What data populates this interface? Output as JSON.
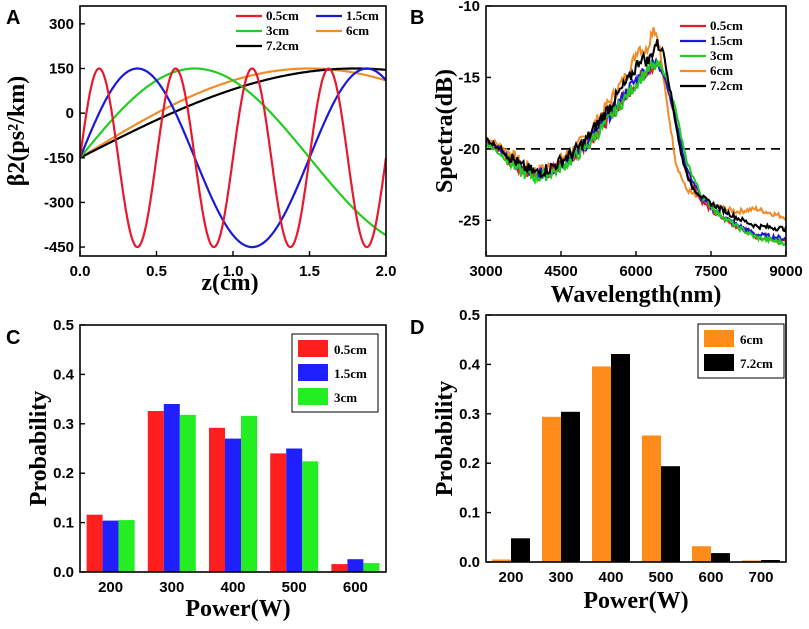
{
  "chart_data": [
    {
      "id": "A",
      "panel_label": "A",
      "type": "line",
      "xlabel": "z(cm)",
      "ylabel": "β2(ps²/km)",
      "xlim": [
        0,
        2.0
      ],
      "ylim": [
        -480,
        360
      ],
      "xticks": [
        "0.0",
        "0.5",
        "1.0",
        "1.5",
        "2.0"
      ],
      "xtick_values": [
        0,
        0.5,
        1.0,
        1.5,
        2.0
      ],
      "yticks": [
        "300",
        "150",
        "0",
        "-150",
        "-300",
        "-450"
      ],
      "ytick_values": [
        300,
        150,
        0,
        -150,
        -300,
        -450
      ],
      "legend_position": "top-right",
      "series": [
        {
          "name": "0.5cm",
          "color": "#e8192c",
          "model": "cosine",
          "period_cm": 0.5,
          "min": -450,
          "max": 150,
          "start": -150
        },
        {
          "name": "1.5cm",
          "color": "#1a1ad6",
          "model": "cosine",
          "period_cm": 1.5,
          "min": -450,
          "max": 150,
          "start": -150
        },
        {
          "name": "3cm",
          "color": "#22cc22",
          "model": "cosine",
          "period_cm": 3,
          "min": -450,
          "max": 150,
          "start": -150
        },
        {
          "name": "6cm",
          "color": "#f08c2a",
          "model": "cosine",
          "period_cm": 6,
          "min": -450,
          "max": 150,
          "start": -150
        },
        {
          "name": "7.2cm",
          "color": "#000000",
          "model": "cosine",
          "period_cm": 7.2,
          "min": -450,
          "max": 150,
          "start": -150
        }
      ]
    },
    {
      "id": "B",
      "panel_label": "B",
      "type": "line",
      "xlabel": "Wavelength(nm)",
      "ylabel": "Spectra(dB)",
      "xlim": [
        3000,
        9000
      ],
      "ylim": [
        -27.5,
        -10
      ],
      "xticks": [
        "3000",
        "4500",
        "6000",
        "7500",
        "9000"
      ],
      "xtick_values": [
        3000,
        4500,
        6000,
        7500,
        9000
      ],
      "yticks": [
        "-10",
        "-15",
        "-20",
        "-25"
      ],
      "ytick_values": [
        -10,
        -15,
        -20,
        -25
      ],
      "reference_line_db": -20,
      "legend_position": "top-right",
      "series": [
        {
          "name": "0.5cm",
          "color": "#e8192c",
          "x": [
            3000,
            3300,
            3700,
            4000,
            4300,
            4700,
            5000,
            5300,
            5600,
            5900,
            6100,
            6300,
            6450,
            6600,
            6800,
            7000,
            7300,
            7600,
            8000,
            8400,
            9000
          ],
          "y": [
            -19.5,
            -20.3,
            -21.5,
            -21.8,
            -21.6,
            -20.6,
            -19.8,
            -18.5,
            -17.2,
            -15.8,
            -14.9,
            -14.3,
            -14.1,
            -15.3,
            -18.2,
            -21.6,
            -23.6,
            -24.6,
            -25.4,
            -26.1,
            -26.5
          ]
        },
        {
          "name": "1.5cm",
          "color": "#1a1ad6",
          "x": [
            3000,
            3300,
            3700,
            4000,
            4300,
            4700,
            5000,
            5300,
            5600,
            5900,
            6100,
            6300,
            6450,
            6600,
            6800,
            7000,
            7300,
            7600,
            8000,
            8400,
            9000
          ],
          "y": [
            -19.4,
            -20.1,
            -21.4,
            -21.9,
            -21.5,
            -20.6,
            -19.7,
            -18.4,
            -17.0,
            -15.6,
            -14.8,
            -14.1,
            -14.0,
            -15.2,
            -18.0,
            -21.3,
            -23.4,
            -24.4,
            -25.3,
            -26.0,
            -26.3
          ]
        },
        {
          "name": "3cm",
          "color": "#22cc22",
          "x": [
            3000,
            3300,
            3700,
            4000,
            4300,
            4700,
            5000,
            5300,
            5600,
            5900,
            6100,
            6300,
            6450,
            6600,
            6800,
            7000,
            7300,
            7600,
            8000,
            8400,
            9000
          ],
          "y": [
            -19.6,
            -20.4,
            -21.6,
            -22.0,
            -21.7,
            -20.8,
            -19.9,
            -18.6,
            -17.3,
            -15.9,
            -15.0,
            -14.3,
            -14.2,
            -14.8,
            -17.4,
            -20.8,
            -23.2,
            -24.4,
            -25.4,
            -26.2,
            -26.6
          ]
        },
        {
          "name": "6cm",
          "color": "#f08c2a",
          "x": [
            3000,
            3300,
            3700,
            4000,
            4300,
            4700,
            5000,
            5300,
            5600,
            5900,
            6050,
            6200,
            6350,
            6450,
            6600,
            6800,
            7000,
            7300,
            7600,
            8000,
            8400,
            9000
          ],
          "y": [
            -19.2,
            -19.8,
            -21.0,
            -21.6,
            -21.2,
            -20.2,
            -19.2,
            -17.6,
            -16.0,
            -14.3,
            -12.8,
            -13.2,
            -11.4,
            -12.4,
            -16.4,
            -21.0,
            -22.8,
            -23.6,
            -24.0,
            -24.4,
            -24.2,
            -24.8
          ]
        },
        {
          "name": "7.2cm",
          "color": "#000000",
          "x": [
            3000,
            3300,
            3700,
            4000,
            4300,
            4700,
            5000,
            5300,
            5600,
            5900,
            6100,
            6250,
            6400,
            6550,
            6700,
            6900,
            7100,
            7400,
            7700,
            8000,
            8400,
            9000
          ],
          "y": [
            -19.3,
            -20.0,
            -21.2,
            -21.7,
            -21.3,
            -20.4,
            -19.4,
            -17.9,
            -16.4,
            -14.9,
            -13.6,
            -13.9,
            -12.6,
            -13.2,
            -16.2,
            -20.4,
            -22.6,
            -23.6,
            -24.2,
            -24.8,
            -25.4,
            -25.6
          ]
        }
      ]
    },
    {
      "id": "C",
      "panel_label": "C",
      "type": "bar",
      "xlabel": "Power(W)",
      "ylabel": "Probability",
      "categories": [
        "200",
        "300",
        "400",
        "500",
        "600"
      ],
      "ylim": [
        0,
        0.5
      ],
      "yticks": [
        "0.0",
        "0.1",
        "0.2",
        "0.3",
        "0.4",
        "0.5"
      ],
      "ytick_values": [
        0,
        0.1,
        0.2,
        0.3,
        0.4,
        0.5
      ],
      "legend_position": "top-right",
      "series": [
        {
          "name": "0.5cm",
          "color": "#ff1f1f",
          "values": [
            0.116,
            0.326,
            0.292,
            0.24,
            0.016
          ]
        },
        {
          "name": "1.5cm",
          "color": "#1f1fff",
          "values": [
            0.104,
            0.34,
            0.27,
            0.25,
            0.026
          ]
        },
        {
          "name": "3cm",
          "color": "#22ee22",
          "values": [
            0.105,
            0.318,
            0.316,
            0.224,
            0.018
          ]
        }
      ]
    },
    {
      "id": "D",
      "panel_label": "D",
      "type": "bar",
      "xlabel": "Power(W)",
      "ylabel": "Probability",
      "categories": [
        "200",
        "300",
        "400",
        "500",
        "600",
        "700"
      ],
      "ylim": [
        0,
        0.5
      ],
      "yticks": [
        "0.0",
        "0.1",
        "0.2",
        "0.3",
        "0.4",
        "0.5"
      ],
      "ytick_values": [
        0,
        0.1,
        0.2,
        0.3,
        0.4,
        0.5
      ],
      "legend_position": "top-right",
      "series": [
        {
          "name": "6cm",
          "color": "#ff8c1a",
          "values": [
            0.005,
            0.294,
            0.396,
            0.256,
            0.032,
            0.003
          ]
        },
        {
          "name": "7.2cm",
          "color": "#000000",
          "values": [
            0.048,
            0.304,
            0.421,
            0.194,
            0.018,
            0.004
          ]
        }
      ]
    }
  ]
}
